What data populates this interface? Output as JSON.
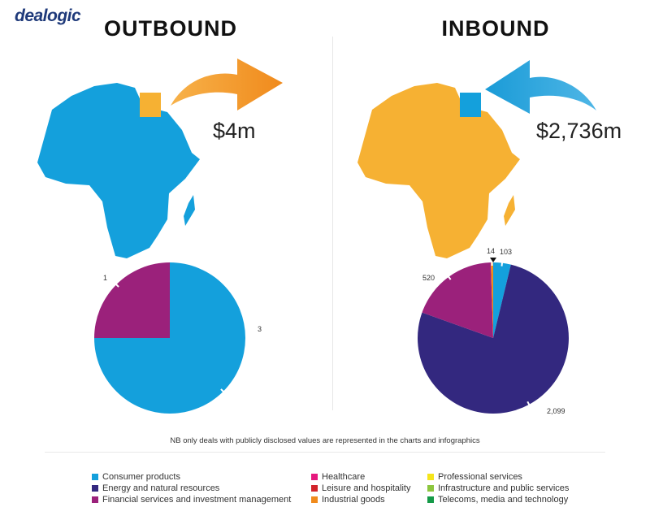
{
  "brand": {
    "logo_text": "dealogic"
  },
  "panels": {
    "outbound": {
      "title": "OUTBOUND",
      "amount": "$4m"
    },
    "inbound": {
      "title": "INBOUND",
      "amount": "$2,736m"
    }
  },
  "note": "NB only deals with publicly disclosed values are represented in the charts and infographics",
  "colors": {
    "consumer_products": "#14a0dc",
    "energy": "#33287f",
    "financial": "#9b217b",
    "healthcare": "#e6197e",
    "leisure": "#d2232a",
    "industrial": "#f08a1c",
    "professional": "#f5e51b",
    "infrastructure": "#8cc63e",
    "telecoms": "#159a48",
    "map_outbound": "#14a0dc",
    "map_inbound": "#f6b133",
    "highlight_out": "#f6b133",
    "highlight_in": "#14a0dc"
  },
  "legend": [
    {
      "label": "Consumer products",
      "color": "#14a0dc"
    },
    {
      "label": "Energy and natural resources",
      "color": "#33287f"
    },
    {
      "label": "Financial services and investment management",
      "color": "#9b217b"
    },
    {
      "label": "Healthcare",
      "color": "#e6197e"
    },
    {
      "label": "Leisure and hospitality",
      "color": "#d2232a"
    },
    {
      "label": "Industrial goods",
      "color": "#f08a1c"
    },
    {
      "label": "Professional services",
      "color": "#f5e51b"
    },
    {
      "label": "Infrastructure and public services",
      "color": "#8cc63e"
    },
    {
      "label": "Telecoms, media and technology",
      "color": "#159a48"
    }
  ],
  "chart_data": [
    {
      "type": "pie",
      "title": "OUTBOUND",
      "categories": [
        "Consumer products",
        "Financial services and investment management"
      ],
      "values": [
        3,
        1
      ],
      "labels": [
        "3",
        "1"
      ],
      "colors": [
        "#14a0dc",
        "#9b217b"
      ]
    },
    {
      "type": "pie",
      "title": "INBOUND",
      "categories": [
        "Consumer products",
        "Energy and natural resources",
        "Financial services and investment management",
        "Industrial goods"
      ],
      "values": [
        103,
        2099,
        520,
        14
      ],
      "labels": [
        "103",
        "2,099",
        "520",
        "14"
      ],
      "colors": [
        "#14a0dc",
        "#33287f",
        "#9b217b",
        "#f08a1c"
      ]
    }
  ]
}
